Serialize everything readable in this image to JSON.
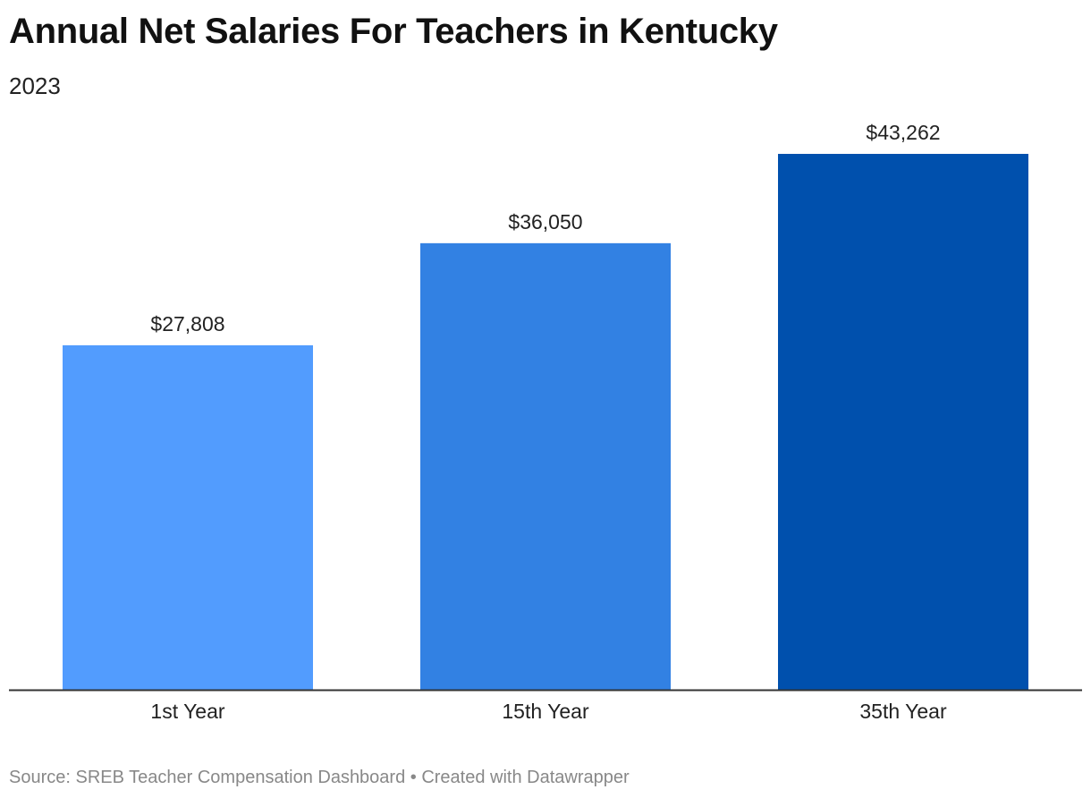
{
  "chart_data": {
    "type": "bar",
    "title": "Annual Net Salaries For Teachers in Kentucky",
    "subtitle": "2023",
    "categories": [
      "1st Year",
      "15th Year",
      "35th Year"
    ],
    "values": [
      27808,
      36050,
      43262
    ],
    "value_labels": [
      "$27,808",
      "$36,050",
      "$43,262"
    ],
    "colors": [
      "#529cfe",
      "#3281e3",
      "#0050ad"
    ],
    "xlabel": "",
    "ylabel": "",
    "ylim": [
      0,
      43262
    ],
    "grid": false,
    "legend": "none"
  },
  "footer": {
    "source_text": "Source: SREB Teacher Compensation Dashboard • Created with Datawrapper"
  },
  "styles": {
    "axis_color": "#333333",
    "label_color": "#222222"
  }
}
